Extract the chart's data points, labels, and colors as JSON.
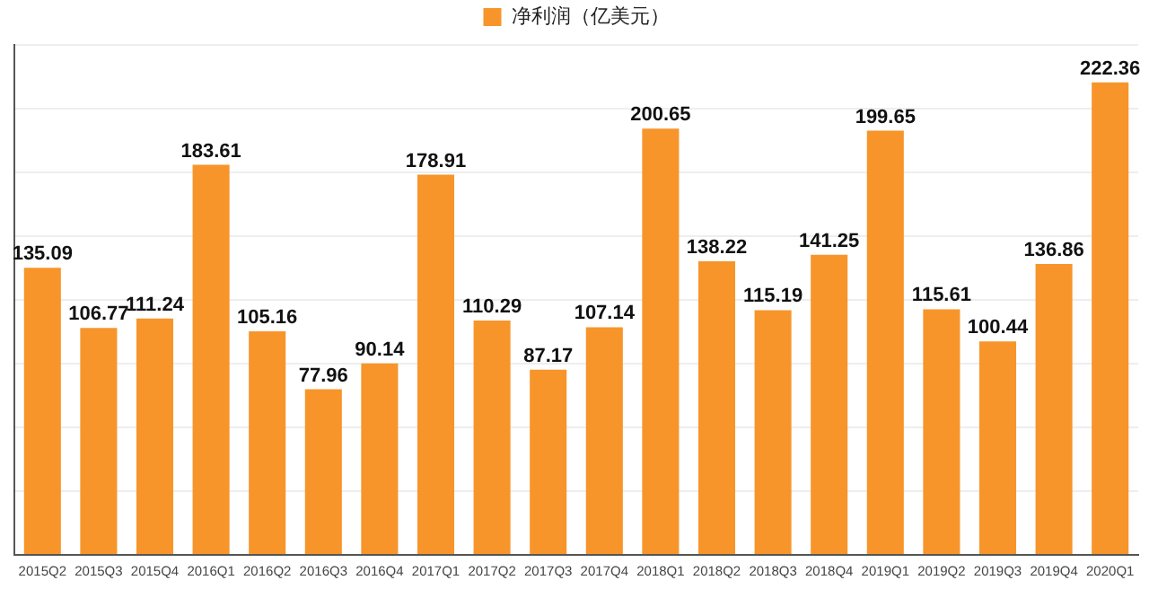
{
  "chart_data": {
    "type": "bar",
    "categories": [
      "2015Q2",
      "2015Q3",
      "2015Q4",
      "2016Q1",
      "2016Q2",
      "2016Q3",
      "2016Q4",
      "2017Q1",
      "2017Q2",
      "2017Q3",
      "2017Q4",
      "2018Q1",
      "2018Q2",
      "2018Q3",
      "2018Q4",
      "2019Q1",
      "2019Q2",
      "2019Q3",
      "2019Q4",
      "2020Q1"
    ],
    "series": [
      {
        "name": "净利润（亿美元）",
        "color": "#f7952b",
        "values": [
          135.09,
          106.77,
          111.24,
          183.61,
          105.16,
          77.96,
          90.14,
          178.91,
          110.29,
          87.17,
          107.14,
          200.65,
          138.22,
          115.19,
          141.25,
          199.65,
          115.61,
          100.44,
          136.86,
          222.36
        ]
      }
    ],
    "ylim": [
      0,
      240
    ],
    "yticks": [
      {
        "value": 0,
        "label": null
      },
      {
        "value": 30,
        "label": null
      },
      {
        "value": 60,
        "label": null
      },
      {
        "value": 90,
        "label": null
      },
      {
        "value": 120,
        "label": null
      },
      {
        "value": 150,
        "label": null
      },
      {
        "value": 180,
        "label": null
      },
      {
        "value": 210,
        "label": null
      },
      {
        "value": 240,
        "label": null
      }
    ],
    "tick_labels": "x",
    "grid": "y",
    "legend": "top",
    "data_labels": true
  }
}
